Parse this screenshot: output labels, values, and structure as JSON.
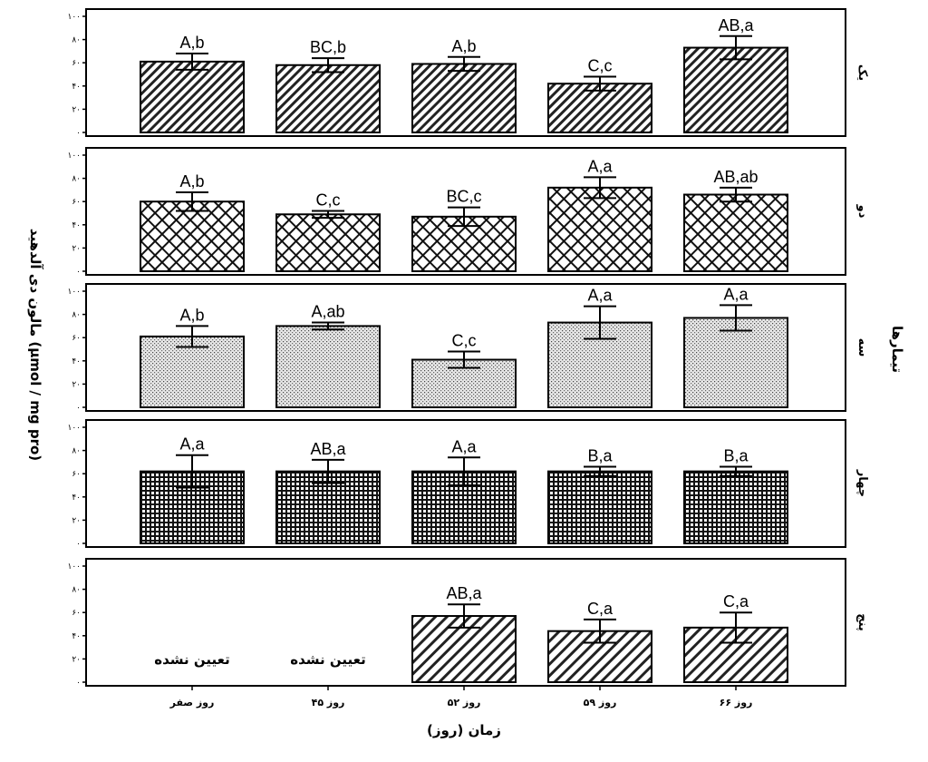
{
  "chart_data": {
    "type": "bar",
    "panels_title": "تیمارها",
    "ylabel": "مالون دی آلدهید (µmol / mg pro)",
    "xlabel": "زمان  (روز)",
    "categories": [
      "روز صفر",
      "روز ۴۵",
      "روز ۵۲",
      "روز ۵۹",
      "روز ۶۶"
    ],
    "yticks": [
      "۰",
      "۲۰",
      "۴۰",
      "۶۰",
      "۸۰",
      "۱۰۰"
    ],
    "ylim": [
      0,
      100
    ],
    "panels": [
      {
        "name": "یک",
        "pattern": "diag-dense",
        "values": [
          61,
          58,
          59,
          42,
          73
        ],
        "errors": [
          7,
          6,
          6,
          6,
          10
        ],
        "labels": [
          "A,b",
          "BC,b",
          "A,b",
          "C,c",
          "AB,a"
        ],
        "not_determined": []
      },
      {
        "name": "دو",
        "pattern": "crosshatch",
        "values": [
          60,
          49,
          47,
          72,
          66
        ],
        "errors": [
          8,
          3,
          8,
          9,
          6
        ],
        "labels": [
          "A,b",
          "C,c",
          "BC,c",
          "A,a",
          "AB,ab"
        ],
        "not_determined": []
      },
      {
        "name": "سه",
        "pattern": "dots",
        "values": [
          61,
          70,
          41,
          73,
          77
        ],
        "errors": [
          9,
          3,
          7,
          14,
          11
        ],
        "labels": [
          "A,b",
          "A,ab",
          "C,c",
          "A,a",
          "A,a"
        ],
        "not_determined": []
      },
      {
        "name": "چهار",
        "pattern": "grid",
        "values": [
          62,
          62,
          62,
          62,
          62
        ],
        "errors": [
          14,
          10,
          12,
          4,
          4
        ],
        "labels": [
          "A,a",
          "AB,a",
          "A,a",
          "B,a",
          "B,a"
        ],
        "not_determined": []
      },
      {
        "name": "پنج",
        "pattern": "diag-wide",
        "values": [
          null,
          null,
          57,
          44,
          47
        ],
        "errors": [
          null,
          null,
          10,
          10,
          13
        ],
        "labels": [
          "",
          "",
          "AB,a",
          "C,a",
          "C,a"
        ],
        "not_determined": [
          "تعیین نشده",
          "تعیین نشده",
          "",
          "",
          ""
        ]
      }
    ],
    "grid": false,
    "legend": "none"
  }
}
